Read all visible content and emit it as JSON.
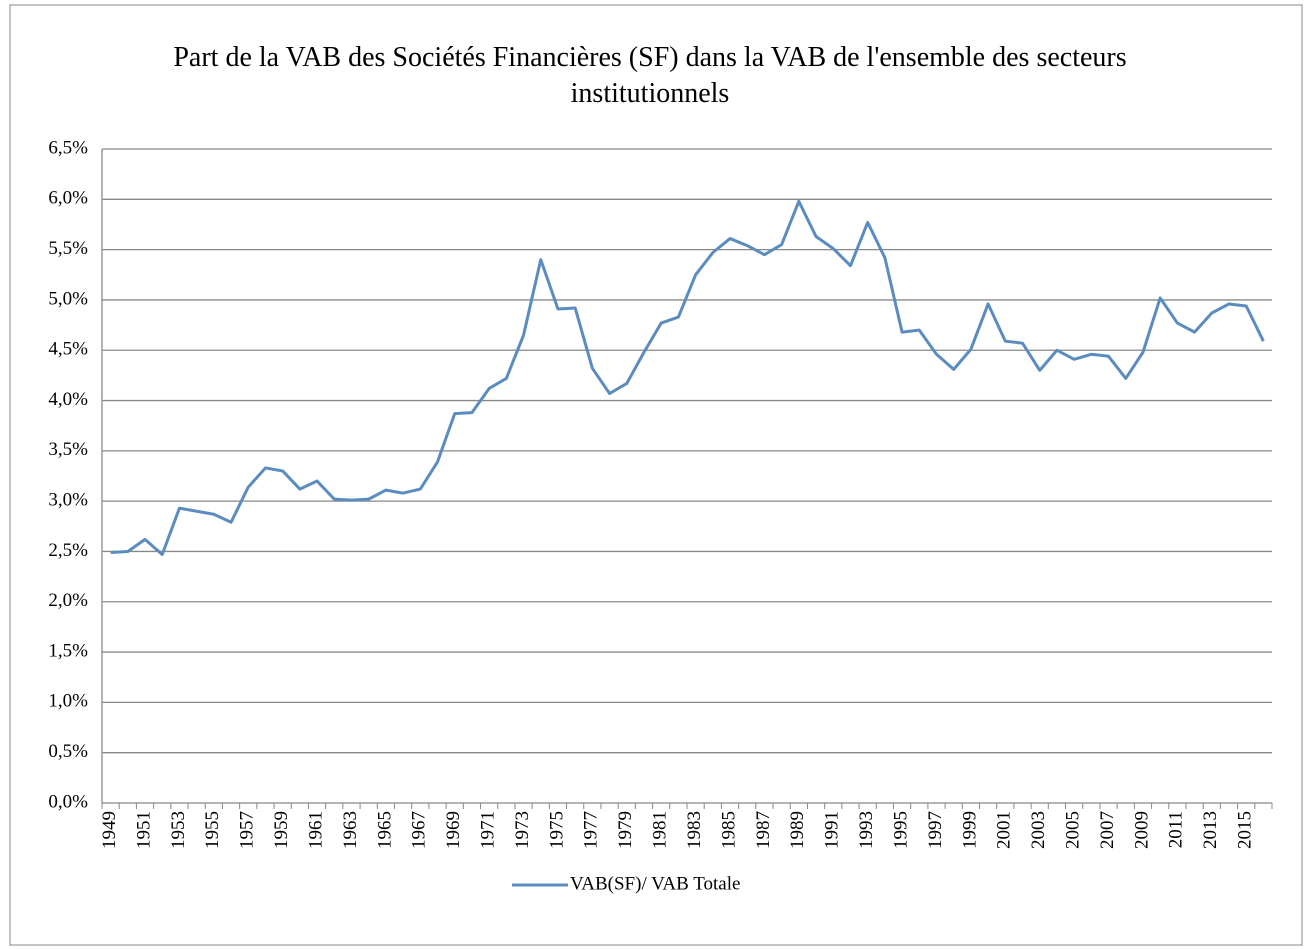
{
  "chart_data": {
    "type": "line",
    "title": "Part de la VAB des Sociétés Financières (SF) dans la VAB de l'ensemble des secteurs institutionnels",
    "categories": [
      "1949",
      null,
      "1951",
      null,
      "1953",
      null,
      "1955",
      null,
      "1957",
      null,
      "1959",
      null,
      "1961",
      null,
      "1963",
      null,
      "1965",
      null,
      "1967",
      null,
      "1969",
      null,
      "1971",
      null,
      "1973",
      null,
      "1975",
      null,
      "1977",
      null,
      "1979",
      null,
      "1981",
      null,
      "1983",
      null,
      "1985",
      null,
      "1987",
      null,
      "1989",
      null,
      "1991",
      null,
      "1993",
      null,
      "1995",
      null,
      "1997",
      null,
      "1999",
      null,
      "2001",
      null,
      "2003",
      null,
      "2005",
      null,
      "2007",
      null,
      "2009",
      null,
      "2011",
      null,
      "2013",
      null,
      "2015",
      null
    ],
    "series": [
      {
        "name": "VAB(SF)/ VAB Totale",
        "color": "#5b8cc0",
        "values": [
          2.49,
          2.5,
          2.62,
          2.47,
          2.93,
          2.9,
          2.87,
          2.79,
          3.14,
          3.33,
          3.3,
          3.12,
          3.2,
          3.02,
          3.01,
          3.02,
          3.11,
          3.08,
          3.12,
          3.39,
          3.87,
          3.88,
          4.12,
          4.22,
          4.65,
          5.4,
          4.91,
          4.92,
          4.32,
          4.07,
          4.17,
          4.48,
          4.77,
          4.83,
          5.25,
          5.47,
          5.61,
          5.54,
          5.45,
          5.55,
          5.98,
          5.63,
          5.51,
          5.34,
          5.77,
          5.42,
          4.68,
          4.7,
          4.46,
          4.31,
          4.51,
          4.96,
          4.59,
          4.57,
          4.3,
          4.5,
          4.41,
          4.46,
          4.44,
          4.22,
          4.48,
          5.02,
          4.77,
          4.68,
          4.87,
          4.96,
          4.94,
          4.59
        ]
      }
    ],
    "ylim": [
      0,
      6.5
    ],
    "yticks": [
      {
        "value": 0,
        "label": "0,0%"
      },
      {
        "value": 0.5,
        "label": "0,5%"
      },
      {
        "value": 1,
        "label": "1,0%"
      },
      {
        "value": 1.5,
        "label": "1,5%"
      },
      {
        "value": 2,
        "label": "2,0%"
      },
      {
        "value": 2.5,
        "label": "2,5%"
      },
      {
        "value": 3,
        "label": "3,0%"
      },
      {
        "value": 3.5,
        "label": "3,5%"
      },
      {
        "value": 4,
        "label": "4,0%"
      },
      {
        "value": 4.5,
        "label": "4,5%"
      },
      {
        "value": 5,
        "label": "5,0%"
      },
      {
        "value": 5.5,
        "label": "5,5%"
      },
      {
        "value": 6,
        "label": "6,0%"
      },
      {
        "value": 6.5,
        "label": "6,5%"
      }
    ],
    "grid": true,
    "legend": "bottom"
  }
}
